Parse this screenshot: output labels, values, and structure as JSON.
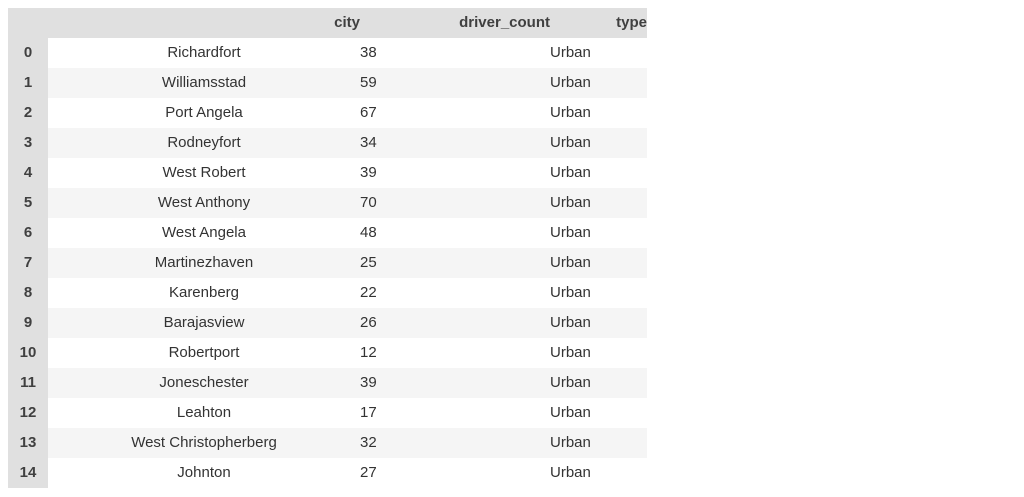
{
  "table": {
    "columns": [
      "",
      "city",
      "driver_count",
      "type"
    ],
    "rows": [
      {
        "index": "0",
        "city": "Richardfort",
        "driver_count": "38",
        "type": "Urban"
      },
      {
        "index": "1",
        "city": "Williamsstad",
        "driver_count": "59",
        "type": "Urban"
      },
      {
        "index": "2",
        "city": "Port Angela",
        "driver_count": "67",
        "type": "Urban"
      },
      {
        "index": "3",
        "city": "Rodneyfort",
        "driver_count": "34",
        "type": "Urban"
      },
      {
        "index": "4",
        "city": "West Robert",
        "driver_count": "39",
        "type": "Urban"
      },
      {
        "index": "5",
        "city": "West Anthony",
        "driver_count": "70",
        "type": "Urban"
      },
      {
        "index": "6",
        "city": "West Angela",
        "driver_count": "48",
        "type": "Urban"
      },
      {
        "index": "7",
        "city": "Martinezhaven",
        "driver_count": "25",
        "type": "Urban"
      },
      {
        "index": "8",
        "city": "Karenberg",
        "driver_count": "22",
        "type": "Urban"
      },
      {
        "index": "9",
        "city": "Barajasview",
        "driver_count": "26",
        "type": "Urban"
      },
      {
        "index": "10",
        "city": "Robertport",
        "driver_count": "12",
        "type": "Urban"
      },
      {
        "index": "11",
        "city": "Joneschester",
        "driver_count": "39",
        "type": "Urban"
      },
      {
        "index": "12",
        "city": "Leahton",
        "driver_count": "17",
        "type": "Urban"
      },
      {
        "index": "13",
        "city": "West Christopherberg",
        "driver_count": "32",
        "type": "Urban"
      },
      {
        "index": "14",
        "city": "Johnton",
        "driver_count": "27",
        "type": "Urban"
      }
    ]
  }
}
